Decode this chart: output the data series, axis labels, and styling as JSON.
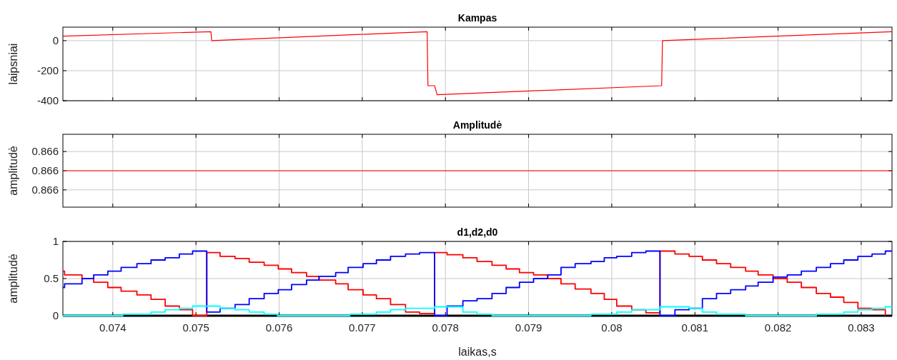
{
  "chart_data": [
    {
      "type": "line",
      "title": "Kampas",
      "ylabel": "laipsniai",
      "xlim": [
        0.0734,
        0.08337
      ],
      "xticks": [
        0.074,
        0.075,
        0.076,
        0.077,
        0.078,
        0.079,
        0.08,
        0.081,
        0.082,
        0.083
      ],
      "ylim": [
        -400,
        90
      ],
      "yticks": [
        -400,
        -200,
        0
      ],
      "grid": true,
      "tick_labels": "y",
      "series": [
        {
          "color": "#ff0000",
          "x": [
            0.0734,
            0.07518,
            0.07519,
            0.07778,
            0.07779,
            0.07787,
            0.0779,
            0.0806,
            0.08061,
            0.08337
          ],
          "values": [
            30,
            60,
            0,
            60,
            -300,
            -300,
            -360,
            -300,
            0,
            60
          ]
        }
      ]
    },
    {
      "type": "line",
      "title": "Amplitudė",
      "ylabel": "amplitudė",
      "xlim": [
        0.0734,
        0.08337
      ],
      "xticks": [
        0.074,
        0.075,
        0.076,
        0.077,
        0.078,
        0.079,
        0.08,
        0.081,
        0.082,
        0.083
      ],
      "ylim": [
        0.86581,
        0.86619
      ],
      "yticks": [
        {
          "value": 0.8659,
          "label": "0.866"
        },
        {
          "value": 0.866,
          "label": "0.866"
        },
        {
          "value": 0.8661,
          "label": "0.866"
        }
      ],
      "grid": true,
      "tick_labels": "y",
      "series": [
        {
          "color": "#ff0000",
          "x": [
            0.0734,
            0.08337
          ],
          "values": [
            0.866,
            0.866
          ]
        }
      ]
    },
    {
      "type": "step",
      "title": "d1,d2,d0",
      "xlabel": "laikas,s",
      "ylabel": "amplitudė",
      "xlim": [
        0.0734,
        0.08337
      ],
      "xticks": [
        0.074,
        0.075,
        0.076,
        0.077,
        0.078,
        0.079,
        0.08,
        0.081,
        0.082,
        0.083
      ],
      "ylim": [
        0,
        1
      ],
      "yticks": [
        0,
        0.5,
        1
      ],
      "grid": true,
      "series": [
        {
          "color": "#000000",
          "x": [
            0.0734,
            0.08337
          ],
          "values": [
            0,
            0
          ]
        },
        {
          "color": "#ff0000",
          "x": [
            0.0734,
            0.07342,
            0.07363,
            0.07377,
            0.07394,
            0.0741,
            0.07429,
            0.07446,
            0.07463,
            0.0748,
            0.07496,
            0.07513,
            0.07529,
            0.07547,
            0.07564,
            0.07582,
            0.07599,
            0.07615,
            0.07633,
            0.07648,
            0.07668,
            0.07683,
            0.07701,
            0.07717,
            0.07734,
            0.07752,
            0.07769,
            0.07787,
            0.07802,
            0.07821,
            0.07838,
            0.07856,
            0.07873,
            0.07889,
            0.07906,
            0.07923,
            0.07939,
            0.07956,
            0.07975,
            0.07991,
            0.08006,
            0.08024,
            0.08041,
            0.08058,
            0.08076,
            0.08093,
            0.08109,
            0.08126,
            0.08143,
            0.08161,
            0.08176,
            0.08194,
            0.08211,
            0.08228,
            0.08246,
            0.08263,
            0.08279,
            0.08296,
            0.08313,
            0.08329
          ],
          "values": [
            0.6,
            0.55,
            0.5,
            0.45,
            0.38,
            0.33,
            0.28,
            0.22,
            0.13,
            0.08,
            0,
            0.85,
            0.8,
            0.77,
            0.72,
            0.68,
            0.63,
            0.58,
            0.53,
            0.48,
            0.43,
            0.35,
            0.28,
            0.23,
            0.15,
            0.05,
            0.03,
            0.85,
            0.82,
            0.78,
            0.73,
            0.68,
            0.63,
            0.58,
            0.55,
            0.5,
            0.43,
            0.36,
            0.3,
            0.22,
            0.13,
            0.08,
            0.04,
            0.87,
            0.83,
            0.8,
            0.75,
            0.7,
            0.65,
            0.6,
            0.55,
            0.5,
            0.45,
            0.38,
            0.3,
            0.25,
            0.18,
            0.1,
            0.08,
            0
          ]
        },
        {
          "color": "#0000ff",
          "x": [
            0.0734,
            0.07342,
            0.07363,
            0.07377,
            0.07394,
            0.0741,
            0.07429,
            0.07446,
            0.07463,
            0.0748,
            0.07496,
            0.07513,
            0.07529,
            0.07547,
            0.07564,
            0.07582,
            0.07599,
            0.07615,
            0.07633,
            0.07648,
            0.07668,
            0.07683,
            0.07701,
            0.07717,
            0.07734,
            0.07752,
            0.07769,
            0.07787,
            0.07802,
            0.07821,
            0.07838,
            0.07856,
            0.07873,
            0.07889,
            0.07906,
            0.07923,
            0.07939,
            0.07956,
            0.07975,
            0.07991,
            0.08006,
            0.08024,
            0.08041,
            0.08058,
            0.08076,
            0.08093,
            0.08109,
            0.08126,
            0.08143,
            0.08161,
            0.08176,
            0.08194,
            0.08211,
            0.08228,
            0.08246,
            0.08263,
            0.08279,
            0.08296,
            0.08313,
            0.08329,
            0.08337
          ],
          "values": [
            0.38,
            0.43,
            0.5,
            0.55,
            0.6,
            0.65,
            0.7,
            0.75,
            0.78,
            0.83,
            0.87,
            0.05,
            0.1,
            0.15,
            0.23,
            0.3,
            0.35,
            0.42,
            0.48,
            0.53,
            0.58,
            0.65,
            0.7,
            0.75,
            0.8,
            0.83,
            0.85,
            0,
            0.13,
            0.2,
            0.23,
            0.3,
            0.38,
            0.45,
            0.5,
            0.55,
            0.65,
            0.7,
            0.73,
            0.78,
            0.8,
            0.85,
            0.87,
            0,
            0.08,
            0.1,
            0.23,
            0.3,
            0.35,
            0.4,
            0.45,
            0.52,
            0.55,
            0.6,
            0.65,
            0.7,
            0.75,
            0.8,
            0.83,
            0.87,
            0.87
          ]
        },
        {
          "color": "#00ffff",
          "x": [
            0.0734,
            0.07412,
            0.07446,
            0.07463,
            0.0748,
            0.07496,
            0.07529,
            0.07547,
            0.07564,
            0.07582,
            0.07598,
            0.07685,
            0.07717,
            0.07734,
            0.07752,
            0.07787,
            0.07821,
            0.07838,
            0.07856,
            0.07975,
            0.08006,
            0.08024,
            0.08058,
            0.08093,
            0.08109,
            0.08126,
            0.08161,
            0.08246,
            0.08279,
            0.08296,
            0.08313,
            0.08329,
            0.08337
          ],
          "values": [
            0,
            0.02,
            0.05,
            0.08,
            0.1,
            0.13,
            0.1,
            0.08,
            0.05,
            0.02,
            0,
            0.02,
            0.05,
            0.08,
            0.1,
            0.12,
            0.05,
            0.02,
            0,
            0.02,
            0.05,
            0.08,
            0.12,
            0.1,
            0.05,
            0.02,
            0,
            0.02,
            0.05,
            0.08,
            0.1,
            0.12,
            0.12
          ]
        }
      ]
    }
  ]
}
